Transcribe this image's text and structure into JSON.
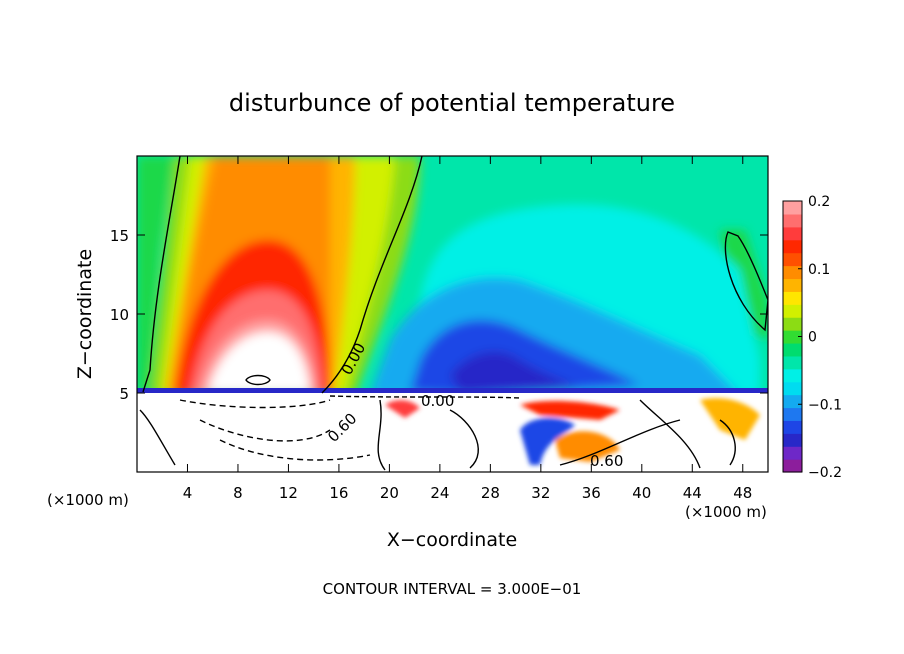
{
  "chart_data": {
    "type": "heatmap",
    "title": "disturbunce of potential temperature",
    "xlabel": "X−coordinate",
    "ylabel": "Z−coordinate",
    "x_unit_left": "(×1000 m)",
    "x_unit_right": "(×1000 m)",
    "xlim": [
      0,
      50
    ],
    "ylim": [
      0,
      20
    ],
    "x_ticks": [
      {
        "value": 4,
        "label": "4"
      },
      {
        "value": 8,
        "label": "8"
      },
      {
        "value": 12,
        "label": "12"
      },
      {
        "value": 16,
        "label": "16"
      },
      {
        "value": 20,
        "label": "20"
      },
      {
        "value": 24,
        "label": "24"
      },
      {
        "value": 28,
        "label": "28"
      },
      {
        "value": 32,
        "label": "32"
      },
      {
        "value": 36,
        "label": "36"
      },
      {
        "value": 40,
        "label": "40"
      },
      {
        "value": 44,
        "label": "44"
      },
      {
        "value": 48,
        "label": "48"
      }
    ],
    "y_ticks": [
      {
        "value": 5,
        "label": "5"
      },
      {
        "value": 10,
        "label": "10"
      },
      {
        "value": 15,
        "label": "15"
      }
    ],
    "colorbar": {
      "range": [
        -0.2,
        0.2
      ],
      "ticks": [
        {
          "value": 0.2,
          "label": "0.2"
        },
        {
          "value": 0.1,
          "label": "0.1"
        },
        {
          "value": 0,
          "label": "0"
        },
        {
          "value": -0.1,
          "label": "−0.1"
        },
        {
          "value": -0.2,
          "label": "−0.2"
        }
      ],
      "colors": [
        "#8c1e9c",
        "#6e28c8",
        "#2828c8",
        "#1e46e6",
        "#1e78f0",
        "#14aaf0",
        "#00dcf0",
        "#00f0e6",
        "#00e6aa",
        "#00dc6e",
        "#32dc32",
        "#8cdc14",
        "#d2f000",
        "#ffe600",
        "#ffb400",
        "#ff8c00",
        "#ff5000",
        "#ff2800",
        "#ff3c3c",
        "#ff6e6e",
        "#ffa0a0"
      ]
    },
    "contour_labels": [
      "0.00",
      "0.00",
      "0.60",
      "0.60"
    ],
    "contour_interval_text": "CONTOUR INTERVAL = 3.000E−01"
  }
}
